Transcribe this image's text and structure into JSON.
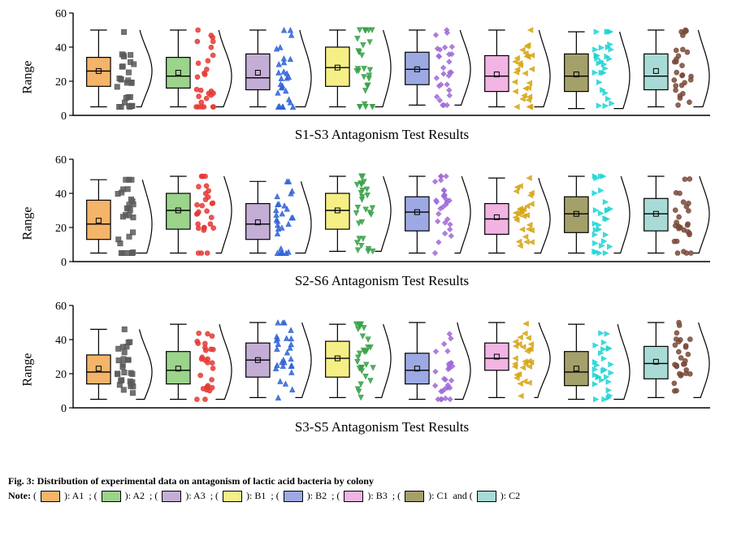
{
  "figure": {
    "caption": "Fig. 3: Distribution of experimental data on antagonism of lactic acid bacteria by colony",
    "note_prefix": "Note: (",
    "note_mid": "): ",
    "note_sep": "; (",
    "note_and": " and (",
    "background": "#ffffff",
    "axis_color": "#000000",
    "tick_fontsize": 14,
    "ylabel": "Range",
    "ylabel_fontsize": 16,
    "title_fontsize": 17,
    "ylim": [
      0,
      60
    ],
    "yticks": [
      0,
      20,
      40,
      60
    ],
    "box_border": "#000000",
    "box_border_width": 1.2,
    "whisker_width": 1.2,
    "density_curve_color": "#000000",
    "density_curve_width": 1.2,
    "legend": [
      {
        "key": "A1",
        "fill": "#f4b46a",
        "scatter": "#5a5a5a",
        "marker": "square"
      },
      {
        "key": "A2",
        "fill": "#9bd48a",
        "scatter": "#e53935",
        "marker": "circle"
      },
      {
        "key": "A3",
        "fill": "#c4aed6",
        "scatter": "#2f63d6",
        "marker": "triangle-up"
      },
      {
        "key": "B1",
        "fill": "#f6ef86",
        "scatter": "#37a047",
        "marker": "triangle-down"
      },
      {
        "key": "B2",
        "fill": "#9da9e3",
        "scatter": "#a06bd6",
        "marker": "diamond"
      },
      {
        "key": "B3",
        "fill": "#f2b4e3",
        "scatter": "#d6a514",
        "marker": "triangle-left"
      },
      {
        "key": "C1",
        "fill": "#a4a06a",
        "scatter": "#1fd4d4",
        "marker": "triangle-right"
      },
      {
        "key": "C2",
        "fill": "#a8dbd6",
        "scatter": "#7a4a3a",
        "marker": "circle"
      }
    ],
    "panels": [
      {
        "title": "S1-S3 Antagonism Test Results",
        "boxes": [
          {
            "q1": 17,
            "med": 26,
            "q3": 34,
            "lw": 5,
            "uw": 50,
            "mean": 26
          },
          {
            "q1": 16,
            "med": 23,
            "q3": 34,
            "lw": 5,
            "uw": 50,
            "mean": 25
          },
          {
            "q1": 15,
            "med": 22,
            "q3": 36,
            "lw": 5,
            "uw": 50,
            "mean": 25
          },
          {
            "q1": 17,
            "med": 28,
            "q3": 40,
            "lw": 5,
            "uw": 50,
            "mean": 28
          },
          {
            "q1": 18,
            "med": 27,
            "q3": 37,
            "lw": 6,
            "uw": 50,
            "mean": 27
          },
          {
            "q1": 14,
            "med": 23,
            "q3": 35,
            "lw": 5,
            "uw": 50,
            "mean": 24
          },
          {
            "q1": 14,
            "med": 23,
            "q3": 36,
            "lw": 4,
            "uw": 49,
            "mean": 24
          },
          {
            "q1": 15,
            "med": 23,
            "q3": 36,
            "lw": 5,
            "uw": 50,
            "mean": 26
          }
        ]
      },
      {
        "title": "S2-S6 Antagonism Test Results",
        "boxes": [
          {
            "q1": 13,
            "med": 22,
            "q3": 36,
            "lw": 5,
            "uw": 48,
            "mean": 24
          },
          {
            "q1": 19,
            "med": 30,
            "q3": 40,
            "lw": 5,
            "uw": 50,
            "mean": 30
          },
          {
            "q1": 13,
            "med": 22,
            "q3": 34,
            "lw": 5,
            "uw": 47,
            "mean": 23
          },
          {
            "q1": 19,
            "med": 30,
            "q3": 40,
            "lw": 6,
            "uw": 50,
            "mean": 30
          },
          {
            "q1": 18,
            "med": 29,
            "q3": 38,
            "lw": 5,
            "uw": 50,
            "mean": 29
          },
          {
            "q1": 16,
            "med": 25,
            "q3": 34,
            "lw": 5,
            "uw": 49,
            "mean": 26
          },
          {
            "q1": 17,
            "med": 28,
            "q3": 38,
            "lw": 5,
            "uw": 50,
            "mean": 28
          },
          {
            "q1": 18,
            "med": 28,
            "q3": 37,
            "lw": 5,
            "uw": 50,
            "mean": 28
          }
        ]
      },
      {
        "title": "S3-S5 Antagonism Test Results",
        "boxes": [
          {
            "q1": 14,
            "med": 21,
            "q3": 31,
            "lw": 5,
            "uw": 46,
            "mean": 23
          },
          {
            "q1": 14,
            "med": 22,
            "q3": 33,
            "lw": 5,
            "uw": 49,
            "mean": 23
          },
          {
            "q1": 18,
            "med": 28,
            "q3": 38,
            "lw": 6,
            "uw": 50,
            "mean": 28
          },
          {
            "q1": 18,
            "med": 29,
            "q3": 39,
            "lw": 6,
            "uw": 49,
            "mean": 29
          },
          {
            "q1": 14,
            "med": 22,
            "q3": 32,
            "lw": 5,
            "uw": 50,
            "mean": 23
          },
          {
            "q1": 22,
            "med": 29,
            "q3": 38,
            "lw": 6,
            "uw": 50,
            "mean": 30
          },
          {
            "q1": 13,
            "med": 21,
            "q3": 33,
            "lw": 5,
            "uw": 49,
            "mean": 23
          },
          {
            "q1": 17,
            "med": 26,
            "q3": 36,
            "lw": 6,
            "uw": 50,
            "mean": 27
          }
        ]
      }
    ]
  }
}
